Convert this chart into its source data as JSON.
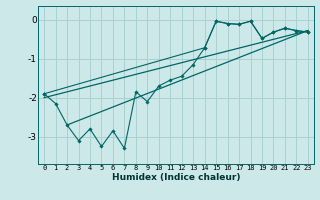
{
  "bg_color": "#cce8e8",
  "grid_color": "#aad0d0",
  "line_color": "#006666",
  "xlabel": "Humidex (Indice chaleur)",
  "xlim": [
    -0.5,
    23.5
  ],
  "ylim": [
    -3.7,
    0.35
  ],
  "yticks": [
    0,
    -1,
    -2,
    -3
  ],
  "xticks": [
    0,
    1,
    2,
    3,
    4,
    5,
    6,
    7,
    8,
    9,
    10,
    11,
    12,
    13,
    14,
    15,
    16,
    17,
    18,
    19,
    20,
    21,
    22,
    23
  ],
  "main_line_x": [
    0,
    1,
    2,
    3,
    4,
    5,
    6,
    7,
    8,
    9,
    10,
    11,
    12,
    13,
    14,
    15,
    16,
    17,
    18,
    19,
    20,
    21,
    22,
    23
  ],
  "main_line_y": [
    -1.9,
    -2.15,
    -2.7,
    -3.1,
    -2.8,
    -3.25,
    -2.85,
    -3.3,
    -1.85,
    -2.1,
    -1.7,
    -1.55,
    -1.45,
    -1.15,
    -0.72,
    -0.04,
    -0.1,
    -0.12,
    -0.04,
    -0.48,
    -0.32,
    -0.22,
    -0.28,
    -0.32
  ],
  "upper_line_x": [
    0,
    14,
    15,
    16,
    17,
    18,
    19,
    20,
    21,
    22,
    23
  ],
  "upper_line_y": [
    -1.9,
    -0.72,
    -0.04,
    -0.1,
    -0.12,
    -0.04,
    -0.48,
    -0.32,
    -0.22,
    -0.28,
    -0.32
  ],
  "reg_line1_x": [
    0,
    23
  ],
  "reg_line1_y": [
    -2.0,
    -0.28
  ],
  "reg_line2_x": [
    2,
    23
  ],
  "reg_line2_y": [
    -2.7,
    -0.28
  ],
  "xlabel_fontsize": 6.5,
  "xlabel_color": "#003333",
  "ytick_fontsize": 6.5,
  "xtick_fontsize": 5.0
}
